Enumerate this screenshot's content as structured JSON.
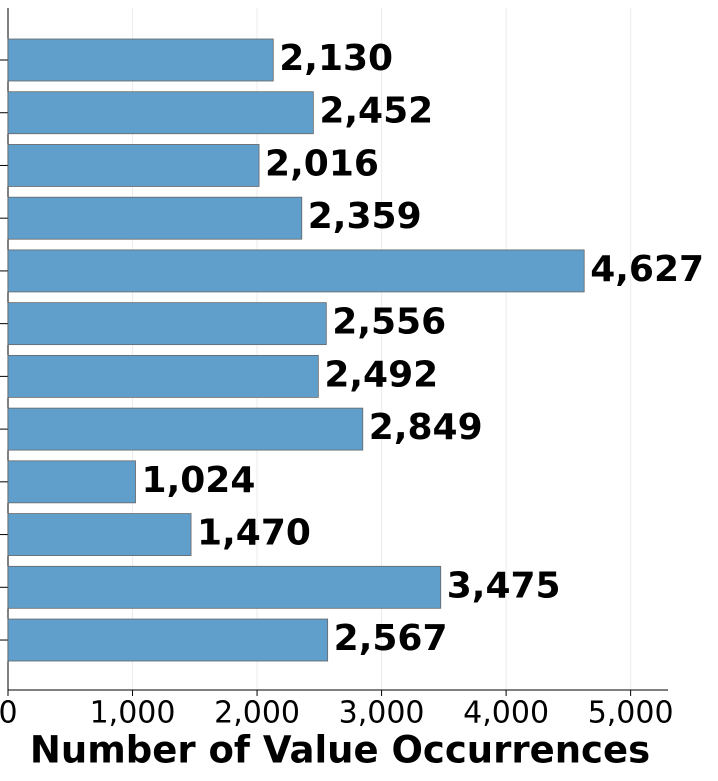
{
  "chart_data": {
    "type": "barh",
    "xlabel": "Number of Value Occurrences",
    "categories": [
      null,
      null,
      null,
      null,
      null,
      null,
      null,
      null,
      null,
      null,
      null,
      null
    ],
    "values": [
      2130,
      2452,
      2016,
      2359,
      4627,
      2556,
      2492,
      2849,
      1024,
      1470,
      3475,
      2567
    ],
    "value_labels": [
      "2,130",
      "2,452",
      "2,016",
      "2,359",
      "4,627",
      "2,556",
      "2,492",
      "2,849",
      "1,024",
      "1,470",
      "3,475",
      "2,567"
    ],
    "color": "#609fcc",
    "xlim": [
      0,
      5300
    ],
    "xticks": [
      0,
      {
        "value": 1000,
        "label": "1,000"
      },
      {
        "value": 2000,
        "label": "2,000"
      },
      {
        "value": 3000,
        "label": "3,000"
      },
      {
        "value": 4000,
        "label": "4,000"
      },
      {
        "value": 5000,
        "label": "5,000"
      }
    ],
    "grid": true
  }
}
